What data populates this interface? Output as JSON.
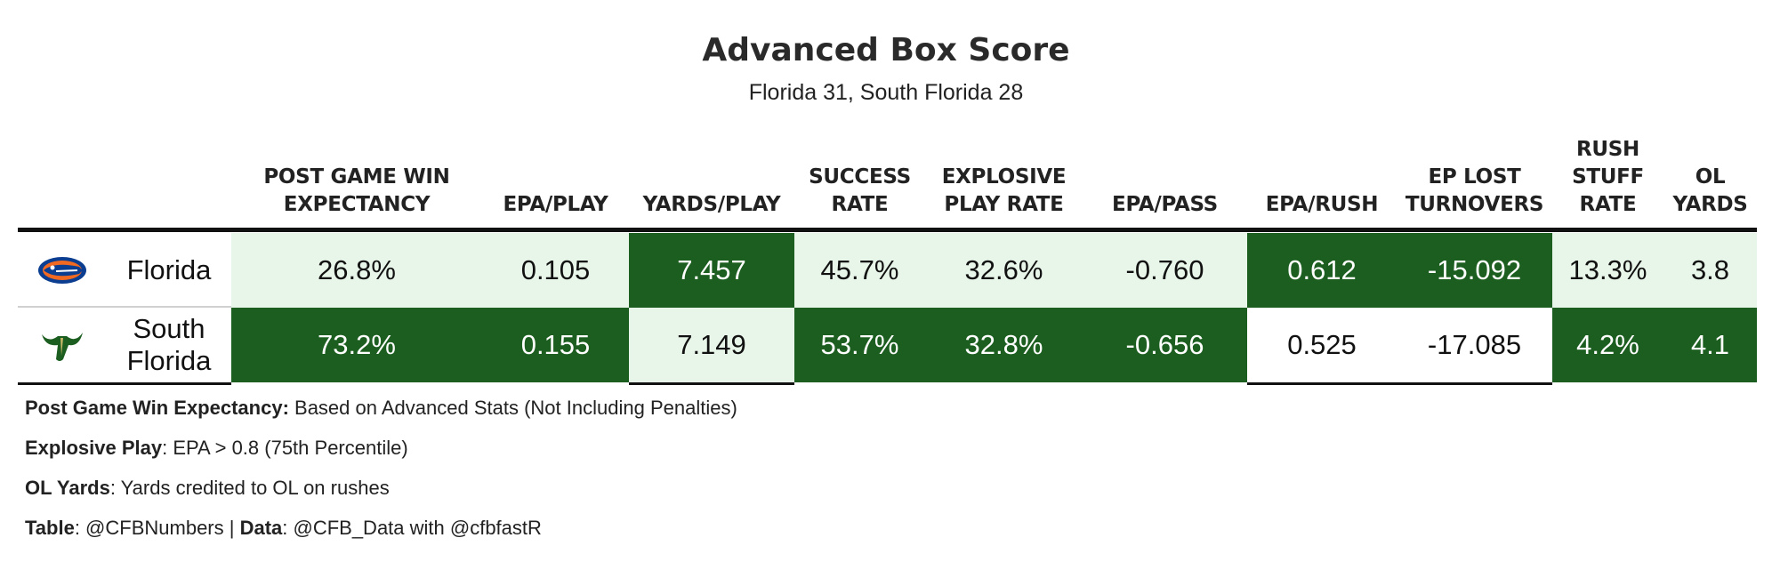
{
  "title": "Advanced Box Score",
  "subtitle": "Florida 31, South Florida 28",
  "columns": [
    {
      "lines": [
        "POST GAME WIN",
        "EXPECTANCY"
      ]
    },
    {
      "lines": [
        "EPA/PLAY"
      ]
    },
    {
      "lines": [
        "YARDS/PLAY"
      ]
    },
    {
      "lines": [
        "SUCCESS",
        "RATE"
      ]
    },
    {
      "lines": [
        "EXPLOSIVE",
        "PLAY RATE"
      ]
    },
    {
      "lines": [
        "EPA/PASS"
      ]
    },
    {
      "lines": [
        "EPA/RUSH"
      ]
    },
    {
      "lines": [
        "EP LOST",
        "TURNOVERS"
      ]
    },
    {
      "lines": [
        "RUSH",
        "STUFF",
        "RATE"
      ]
    },
    {
      "lines": [
        "OL",
        "YARDS"
      ]
    }
  ],
  "rows": [
    {
      "team_lines": [
        "Florida"
      ],
      "logo": "florida-gator-logo",
      "values": [
        "26.8%",
        "0.105",
        "7.457",
        "45.7%",
        "32.6%",
        "-0.760",
        "0.612",
        "-15.092",
        "13.3%",
        "3.8"
      ],
      "shades": [
        "light",
        "light",
        "dark",
        "light",
        "light",
        "light",
        "dark",
        "dark",
        "light",
        "light"
      ]
    },
    {
      "team_lines": [
        "South",
        "Florida"
      ],
      "logo": "usf-bulls-logo",
      "values": [
        "73.2%",
        "0.155",
        "7.149",
        "53.7%",
        "32.8%",
        "-0.656",
        "0.525",
        "-17.085",
        "4.2%",
        "4.1"
      ],
      "shades": [
        "dark",
        "dark",
        "light",
        "dark",
        "dark",
        "dark",
        "white",
        "white",
        "dark",
        "dark"
      ]
    }
  ],
  "notes": [
    {
      "bold": "Post Game Win Expectancy:",
      "text": " Based on Advanced Stats (Not Including Penalties)"
    },
    {
      "bold": "Explosive Play",
      "text": ": EPA > 0.8 (75th Percentile)"
    },
    {
      "bold": "OL Yards",
      "text": ": Yards credited to OL on rushes"
    }
  ],
  "credit": {
    "bold1": "Table",
    "text1": ": @CFBNumbers | ",
    "bold2": "Data",
    "text2": ": @CFB_Data with @cfbfastR"
  },
  "colors": {
    "dark": "#1c5e20",
    "light": "#e8f5e9",
    "florida_blue": "#0b3d91",
    "florida_orange": "#f26a21",
    "usf_green": "#1c5e20"
  }
}
